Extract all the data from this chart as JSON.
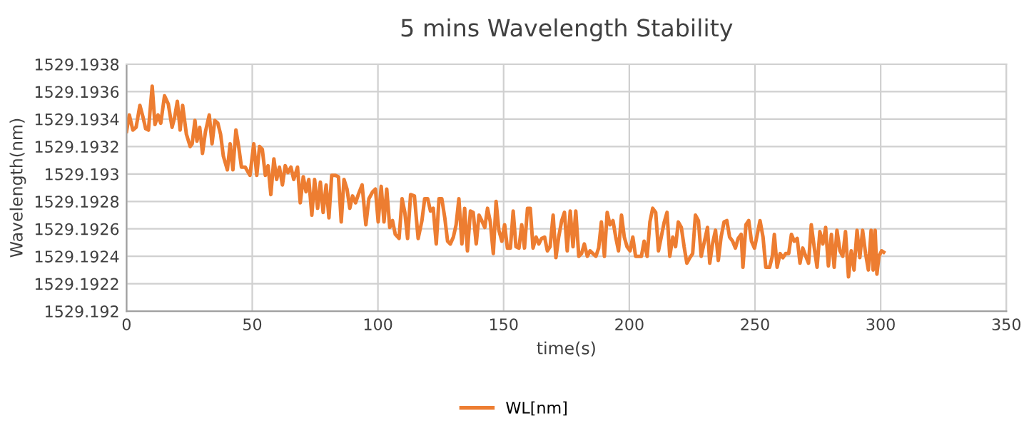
{
  "chart_data": {
    "type": "line",
    "title": "5 mins Wavelength Stability",
    "xlabel": "time(s)",
    "ylabel": "Wavelength(nm)",
    "xlim": [
      0,
      350
    ],
    "xticks": [
      0,
      50,
      100,
      150,
      200,
      250,
      300,
      350
    ],
    "ylim": [
      1529.192,
      1529.1938
    ],
    "yticks": [
      1529.192,
      1529.1922,
      1529.1924,
      1529.1926,
      1529.1928,
      1529.193,
      1529.1932,
      1529.1934,
      1529.1936,
      1529.1938
    ],
    "grid": true,
    "legend": "bottom",
    "marker": "none",
    "line_style": "solid",
    "series": [
      {
        "name": "WL[nm]",
        "color": "#ed7d31",
        "x": [
          0.0,
          1.1,
          2.5,
          3.8,
          5.3,
          6.6,
          7.6,
          8.7,
          10.2,
          11.3,
          12.5,
          13.6,
          15.1,
          16.6,
          18.1,
          19.1,
          20.2,
          21.3,
          22.3,
          23.8,
          25.3,
          26.1,
          27.2,
          28.0,
          29.1,
          30.2,
          31.4,
          32.9,
          34.0,
          35.1,
          36.3,
          37.4,
          38.5,
          40.1,
          41.2,
          42.3,
          43.5,
          44.6,
          45.7,
          47.2,
          49.1,
          50.6,
          51.8,
          52.9,
          54.0,
          55.2,
          56.3,
          57.4,
          58.6,
          59.7,
          60.8,
          62.0,
          63.1,
          64.2,
          65.4,
          66.5,
          68.0,
          69.1,
          70.3,
          71.4,
          72.5,
          73.7,
          74.8,
          76.0,
          77.1,
          78.2,
          79.4,
          80.5,
          81.6,
          83.1,
          84.3,
          85.4,
          86.5,
          87.7,
          88.8,
          89.9,
          91.1,
          92.2,
          93.7,
          95.2,
          96.4,
          97.9,
          99.0,
          100.1,
          101.3,
          102.4,
          103.5,
          104.7,
          105.8,
          106.9,
          108.4,
          109.6,
          110.7,
          111.8,
          113.0,
          114.5,
          116.0,
          117.5,
          118.6,
          119.8,
          120.9,
          122.0,
          123.2,
          124.3,
          125.4,
          126.6,
          127.7,
          128.8,
          130.0,
          131.1,
          132.2,
          133.4,
          134.5,
          135.6,
          136.8,
          137.9,
          139.1,
          140.2,
          141.3,
          142.5,
          143.6,
          144.7,
          145.9,
          147.0,
          148.1,
          149.3,
          150.4,
          151.5,
          152.7,
          153.8,
          154.9,
          156.1,
          157.2,
          158.3,
          159.5,
          160.6,
          161.7,
          162.9,
          164.0,
          165.1,
          166.3,
          167.4,
          168.5,
          169.7,
          170.8,
          171.9,
          173.1,
          174.2,
          175.3,
          176.5,
          177.6,
          178.7,
          179.9,
          181.0,
          182.1,
          183.3,
          184.4,
          185.5,
          186.7,
          187.8,
          188.9,
          190.1,
          191.2,
          192.3,
          193.5,
          194.6,
          195.7,
          196.9,
          198.0,
          199.1,
          200.3,
          201.4,
          202.5,
          203.7,
          204.8,
          205.9,
          207.1,
          208.2,
          209.3,
          210.5,
          211.6,
          212.7,
          213.9,
          215.0,
          216.1,
          217.3,
          218.4,
          219.5,
          220.7,
          221.8,
          222.9,
          224.1,
          225.2,
          226.3,
          227.5,
          228.6,
          231.1,
          232.0,
          233.1,
          234.3,
          235.4,
          236.5,
          237.7,
          238.8,
          239.9,
          241.1,
          242.2,
          243.3,
          244.5,
          245.2,
          246.4,
          247.5,
          248.6,
          249.8,
          250.9,
          252.0,
          253.2,
          254.3,
          255.8,
          256.9,
          257.7,
          258.8,
          260.0,
          261.1,
          262.2,
          263.4,
          264.5,
          265.6,
          266.8,
          267.9,
          269.0,
          270.2,
          271.3,
          272.4,
          273.6,
          274.7,
          275.8,
          277.0,
          278.1,
          279.2,
          280.4,
          281.5,
          282.6,
          283.8,
          284.9,
          286.0,
          287.2,
          288.3,
          289.4,
          290.6,
          291.7,
          292.8,
          294.0,
          295.1,
          296.2,
          297.0,
          297.8,
          298.5,
          299.3,
          300.4,
          301.2
        ],
        "values": [
          1529.19331,
          1529.19343,
          1529.19332,
          1529.19334,
          1529.1935,
          1529.19341,
          1529.19333,
          1529.19332,
          1529.19364,
          1529.19336,
          1529.19343,
          1529.19337,
          1529.19357,
          1529.19351,
          1529.19334,
          1529.19341,
          1529.19353,
          1529.19332,
          1529.1935,
          1529.19329,
          1529.1932,
          1529.19322,
          1529.19339,
          1529.19324,
          1529.19334,
          1529.19315,
          1529.19331,
          1529.19343,
          1529.19322,
          1529.19339,
          1529.19337,
          1529.19329,
          1529.19313,
          1529.19303,
          1529.19322,
          1529.19303,
          1529.19332,
          1529.1932,
          1529.19305,
          1529.19305,
          1529.19299,
          1529.19322,
          1529.19299,
          1529.1932,
          1529.19318,
          1529.19299,
          1529.19306,
          1529.19285,
          1529.19311,
          1529.19296,
          1529.19305,
          1529.19292,
          1529.19306,
          1529.19301,
          1529.19305,
          1529.19296,
          1529.19305,
          1529.19279,
          1529.19298,
          1529.19287,
          1529.19296,
          1529.1927,
          1529.19296,
          1529.19275,
          1529.19294,
          1529.19272,
          1529.19292,
          1529.19268,
          1529.19299,
          1529.19299,
          1529.19298,
          1529.19265,
          1529.19296,
          1529.19289,
          1529.19275,
          1529.19284,
          1529.19279,
          1529.19285,
          1529.19292,
          1529.19263,
          1529.19282,
          1529.19287,
          1529.19289,
          1529.19265,
          1529.19291,
          1529.19265,
          1529.19289,
          1529.19261,
          1529.19266,
          1529.19256,
          1529.19253,
          1529.19282,
          1529.19272,
          1529.19253,
          1529.19285,
          1529.19284,
          1529.19253,
          1529.19266,
          1529.19282,
          1529.19282,
          1529.19273,
          1529.19275,
          1529.19249,
          1529.19282,
          1529.19282,
          1529.19268,
          1529.19251,
          1529.19249,
          1529.19254,
          1529.19263,
          1529.19282,
          1529.19249,
          1529.19275,
          1529.19244,
          1529.19273,
          1529.19272,
          1529.19249,
          1529.1927,
          1529.19266,
          1529.19261,
          1529.19275,
          1529.19265,
          1529.19242,
          1529.1928,
          1529.19259,
          1529.19251,
          1529.19263,
          1529.19246,
          1529.19246,
          1529.19273,
          1529.19247,
          1529.19246,
          1529.19263,
          1529.19246,
          1529.19275,
          1529.19275,
          1529.19246,
          1529.19254,
          1529.19249,
          1529.19253,
          1529.19254,
          1529.19244,
          1529.19247,
          1529.1927,
          1529.19239,
          1529.19254,
          1529.19266,
          1529.19272,
          1529.19244,
          1529.19273,
          1529.19247,
          1529.19273,
          1529.1924,
          1529.19242,
          1529.19249,
          1529.1924,
          1529.19244,
          1529.19242,
          1529.1924,
          1529.19246,
          1529.19265,
          1529.1924,
          1529.19272,
          1529.19263,
          1529.19266,
          1529.19254,
          1529.19244,
          1529.1927,
          1529.19254,
          1529.19247,
          1529.19244,
          1529.19254,
          1529.1924,
          1529.1924,
          1529.1924,
          1529.19251,
          1529.1924,
          1529.19265,
          1529.19275,
          1529.19272,
          1529.19244,
          1529.19254,
          1529.19265,
          1529.19272,
          1529.1924,
          1529.19254,
          1529.19247,
          1529.19265,
          1529.19261,
          1529.19247,
          1529.19235,
          1529.19239,
          1529.19242,
          1529.1927,
          1529.19266,
          1529.1924,
          1529.19261,
          1529.19235,
          1529.19249,
          1529.19259,
          1529.19237,
          1529.19254,
          1529.19265,
          1529.19266,
          1529.19254,
          1529.19251,
          1529.19246,
          1529.19253,
          1529.19256,
          1529.19232,
          1529.19263,
          1529.19266,
          1529.19251,
          1529.19246,
          1529.19256,
          1529.19266,
          1529.19254,
          1529.19232,
          1529.19232,
          1529.1924,
          1529.19256,
          1529.19232,
          1529.19242,
          1529.19239,
          1529.19242,
          1529.19242,
          1529.19256,
          1529.19251,
          1529.19253,
          1529.19235,
          1529.19246,
          1529.1924,
          1529.19235,
          1529.19263,
          1529.19246,
          1529.19232,
          1529.19258,
          1529.19249,
          1529.19261,
          1529.19233,
          1529.19256,
          1529.19232,
          1529.19259,
          1529.19244,
          1529.1924,
          1529.19258,
          1529.19225,
          1529.19244,
          1529.1923,
          1529.19259,
          1529.19239,
          1529.19259,
          1529.19242,
          1529.1923,
          1529.19259,
          1529.1923,
          1529.19259,
          1529.19227,
          1529.1924,
          1529.19244,
          1529.19243
        ]
      }
    ]
  }
}
